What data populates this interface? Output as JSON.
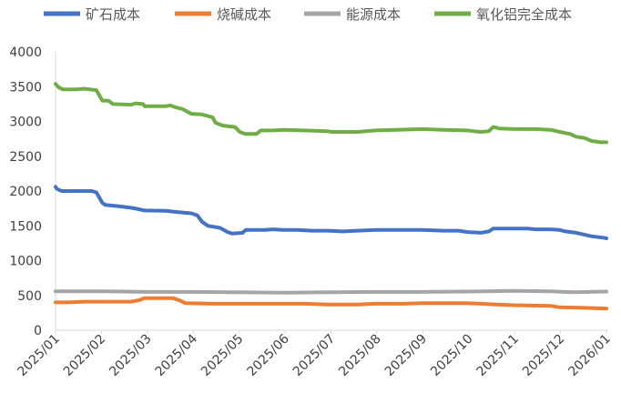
{
  "chart_data": {
    "type": "line",
    "title": "",
    "xlabel": "",
    "ylabel": "",
    "ylim": [
      0,
      4000
    ],
    "yticks": [
      0,
      500,
      1000,
      1500,
      2000,
      2500,
      3000,
      3500,
      4000
    ],
    "ytick_labels": [
      "0",
      "500",
      "1000",
      "1500",
      "2000",
      "2500",
      "3000",
      "3500",
      "4000"
    ],
    "xtick_labels": [
      "2025/01",
      "2025/02",
      "2025/03",
      "2025/04",
      "2025/05",
      "2025/06",
      "2025/07",
      "2025/08",
      "2025/09",
      "2025/10",
      "2025/11",
      "2025/12",
      "2026/01"
    ],
    "legend_position": "top",
    "grid": false,
    "series": [
      {
        "name": "矿石成本",
        "color": "#4472C4",
        "points": [
          [
            "2025-01-01",
            2060
          ],
          [
            "2025-01-02",
            2030
          ],
          [
            "2025-01-05",
            2000
          ],
          [
            "2025-01-25",
            2000
          ],
          [
            "2025-01-28",
            1980
          ],
          [
            "2025-02-01",
            1830
          ],
          [
            "2025-02-03",
            1800
          ],
          [
            "2025-02-08",
            1790
          ],
          [
            "2025-02-12",
            1780
          ],
          [
            "2025-02-20",
            1760
          ],
          [
            "2025-02-25",
            1740
          ],
          [
            "2025-03-01",
            1720
          ],
          [
            "2025-03-15",
            1715
          ],
          [
            "2025-03-22",
            1700
          ],
          [
            "2025-04-01",
            1680
          ],
          [
            "2025-04-05",
            1650
          ],
          [
            "2025-04-08",
            1560
          ],
          [
            "2025-04-12",
            1500
          ],
          [
            "2025-04-20",
            1470
          ],
          [
            "2025-04-25",
            1410
          ],
          [
            "2025-04-28",
            1390
          ],
          [
            "2025-05-05",
            1400
          ],
          [
            "2025-05-07",
            1440
          ],
          [
            "2025-05-20",
            1440
          ],
          [
            "2025-05-25",
            1450
          ],
          [
            "2025-06-01",
            1440
          ],
          [
            "2025-06-10",
            1440
          ],
          [
            "2025-06-20",
            1430
          ],
          [
            "2025-07-01",
            1430
          ],
          [
            "2025-07-10",
            1420
          ],
          [
            "2025-07-20",
            1430
          ],
          [
            "2025-08-01",
            1440
          ],
          [
            "2025-08-15",
            1440
          ],
          [
            "2025-09-01",
            1440
          ],
          [
            "2025-09-15",
            1430
          ],
          [
            "2025-09-25",
            1430
          ],
          [
            "2025-10-01",
            1410
          ],
          [
            "2025-10-10",
            1400
          ],
          [
            "2025-10-15",
            1420
          ],
          [
            "2025-10-18",
            1460
          ],
          [
            "2025-11-01",
            1460
          ],
          [
            "2025-11-10",
            1460
          ],
          [
            "2025-11-15",
            1450
          ],
          [
            "2025-11-25",
            1450
          ],
          [
            "2025-12-01",
            1440
          ],
          [
            "2025-12-05",
            1420
          ],
          [
            "2025-12-12",
            1400
          ],
          [
            "2025-12-18",
            1370
          ],
          [
            "2025-12-22",
            1350
          ],
          [
            "2025-12-30",
            1330
          ],
          [
            "2026-01-01",
            1320
          ]
        ]
      },
      {
        "name": "烧碱成本",
        "color": "#ED7D31",
        "points": [
          [
            "2025-01-01",
            400
          ],
          [
            "2025-01-10",
            400
          ],
          [
            "2025-01-20",
            410
          ],
          [
            "2025-02-20",
            410
          ],
          [
            "2025-02-25",
            430
          ],
          [
            "2025-03-01",
            460
          ],
          [
            "2025-03-20",
            460
          ],
          [
            "2025-03-24",
            430
          ],
          [
            "2025-03-28",
            390
          ],
          [
            "2025-04-15",
            380
          ],
          [
            "2025-05-15",
            380
          ],
          [
            "2025-06-15",
            380
          ],
          [
            "2025-07-01",
            370
          ],
          [
            "2025-07-20",
            370
          ],
          [
            "2025-08-01",
            380
          ],
          [
            "2025-08-20",
            380
          ],
          [
            "2025-09-01",
            390
          ],
          [
            "2025-09-30",
            390
          ],
          [
            "2025-10-10",
            380
          ],
          [
            "2025-10-20",
            370
          ],
          [
            "2025-11-01",
            360
          ],
          [
            "2025-11-25",
            350
          ],
          [
            "2025-12-01",
            330
          ],
          [
            "2025-12-20",
            320
          ],
          [
            "2026-01-01",
            310
          ]
        ]
      },
      {
        "name": "能源成本",
        "color": "#A5A5A5",
        "points": [
          [
            "2025-01-01",
            560
          ],
          [
            "2025-02-01",
            560
          ],
          [
            "2025-03-01",
            550
          ],
          [
            "2025-04-01",
            550
          ],
          [
            "2025-05-01",
            545
          ],
          [
            "2025-06-01",
            540
          ],
          [
            "2025-07-01",
            545
          ],
          [
            "2025-08-01",
            550
          ],
          [
            "2025-09-01",
            550
          ],
          [
            "2025-10-01",
            555
          ],
          [
            "2025-11-01",
            565
          ],
          [
            "2025-11-25",
            560
          ],
          [
            "2025-12-10",
            545
          ],
          [
            "2026-01-01",
            555
          ]
        ]
      },
      {
        "name": "氧化铝完全成本",
        "color": "#70AD47",
        "points": [
          [
            "2025-01-01",
            3540
          ],
          [
            "2025-01-03",
            3490
          ],
          [
            "2025-01-06",
            3460
          ],
          [
            "2025-01-15",
            3460
          ],
          [
            "2025-01-20",
            3470
          ],
          [
            "2025-01-28",
            3450
          ],
          [
            "2025-02-01",
            3300
          ],
          [
            "2025-02-05",
            3300
          ],
          [
            "2025-02-08",
            3250
          ],
          [
            "2025-02-20",
            3240
          ],
          [
            "2025-02-23",
            3260
          ],
          [
            "2025-02-28",
            3250
          ],
          [
            "2025-03-01",
            3220
          ],
          [
            "2025-03-15",
            3220
          ],
          [
            "2025-03-18",
            3230
          ],
          [
            "2025-03-22",
            3200
          ],
          [
            "2025-03-26",
            3180
          ],
          [
            "2025-04-01",
            3110
          ],
          [
            "2025-04-08",
            3100
          ],
          [
            "2025-04-15",
            3060
          ],
          [
            "2025-04-17",
            2980
          ],
          [
            "2025-04-22",
            2940
          ],
          [
            "2025-04-30",
            2920
          ],
          [
            "2025-05-03",
            2850
          ],
          [
            "2025-05-07",
            2820
          ],
          [
            "2025-05-14",
            2820
          ],
          [
            "2025-05-17",
            2870
          ],
          [
            "2025-05-25",
            2870
          ],
          [
            "2025-06-01",
            2880
          ],
          [
            "2025-06-15",
            2870
          ],
          [
            "2025-06-30",
            2860
          ],
          [
            "2025-07-03",
            2850
          ],
          [
            "2025-07-20",
            2850
          ],
          [
            "2025-08-01",
            2870
          ],
          [
            "2025-08-15",
            2880
          ],
          [
            "2025-09-01",
            2890
          ],
          [
            "2025-09-15",
            2880
          ],
          [
            "2025-10-01",
            2870
          ],
          [
            "2025-10-05",
            2860
          ],
          [
            "2025-10-10",
            2850
          ],
          [
            "2025-10-15",
            2860
          ],
          [
            "2025-10-18",
            2920
          ],
          [
            "2025-10-22",
            2900
          ],
          [
            "2025-11-01",
            2890
          ],
          [
            "2025-11-15",
            2890
          ],
          [
            "2025-11-25",
            2880
          ],
          [
            "2025-12-01",
            2850
          ],
          [
            "2025-12-08",
            2820
          ],
          [
            "2025-12-12",
            2780
          ],
          [
            "2025-12-18",
            2760
          ],
          [
            "2025-12-22",
            2720
          ],
          [
            "2025-12-28",
            2700
          ],
          [
            "2026-01-01",
            2700
          ]
        ]
      }
    ]
  }
}
